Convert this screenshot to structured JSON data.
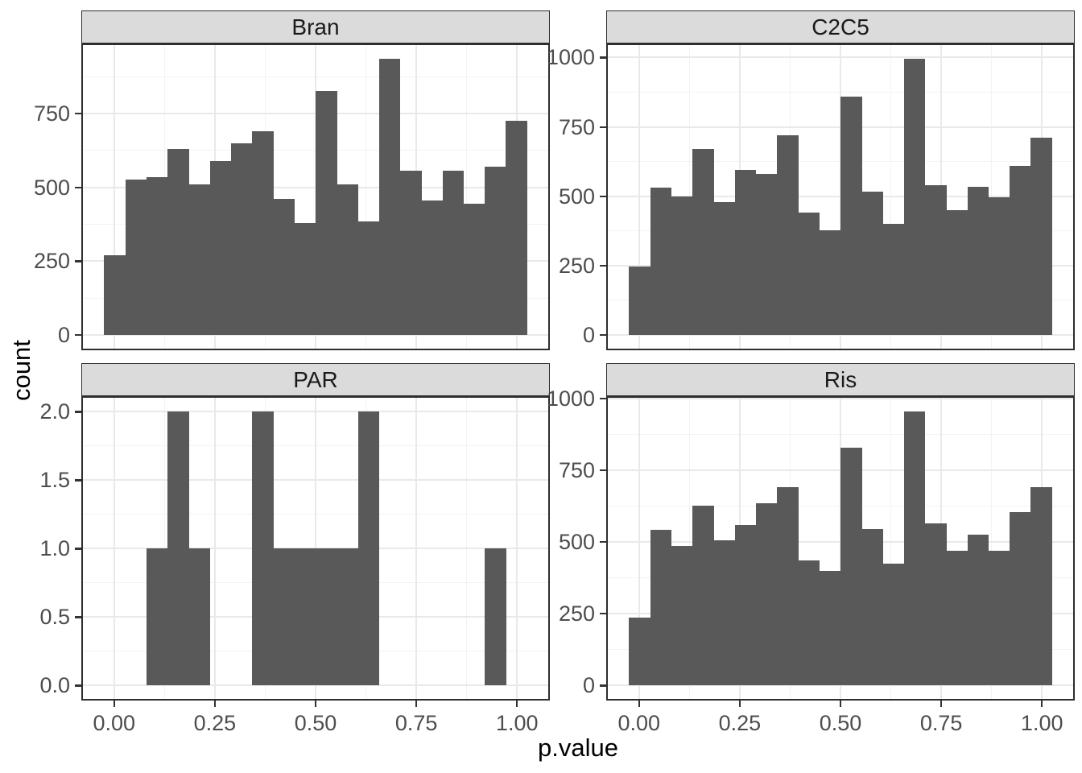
{
  "figure": {
    "x_axis_title": "p.value",
    "y_axis_title": "count"
  },
  "style": {
    "bar_fill": "#595959",
    "strip_fill": "#DBDBDB",
    "panel_border": "#2E2E2E",
    "grid_major": "#E9E9E9",
    "grid_minor": "#F3F3F3",
    "tick_mark_color": "#333333",
    "tick_label_color": "#4D4D4D",
    "background": "#FFFFFF"
  },
  "chart_data": {
    "type": "bar",
    "subtype": "faceted-histogram",
    "title": "",
    "xlabel": "p.value",
    "ylabel": "count",
    "grid": true,
    "legend": false,
    "x_range": [
      -0.0775,
      1.0775
    ],
    "bin_start": -0.025,
    "bin_width": 0.0525,
    "x_ticks": [
      0,
      0.25,
      0.5,
      0.75,
      1.0
    ],
    "x_tick_labels": [
      "0.00",
      "0.25",
      "0.50",
      "0.75",
      "1.00"
    ],
    "x_minor": [
      0.125,
      0.375,
      0.625,
      0.875
    ],
    "facets": [
      {
        "label": "Bran",
        "counts": [
          270,
          525,
          535,
          630,
          510,
          590,
          650,
          690,
          460,
          380,
          825,
          510,
          385,
          935,
          555,
          455,
          555,
          445,
          570,
          725
        ],
        "y_max": 935,
        "y_ticks": [
          0,
          250,
          500,
          750
        ],
        "y_tick_labels": [
          "0",
          "250",
          "500",
          "750"
        ],
        "y_minor": [
          125,
          375,
          625,
          875
        ]
      },
      {
        "label": "C2C5",
        "counts": [
          247,
          530,
          500,
          670,
          478,
          595,
          580,
          720,
          440,
          378,
          860,
          515,
          400,
          995,
          540,
          450,
          535,
          497,
          610,
          710
        ],
        "y_max": 995,
        "y_ticks": [
          0,
          250,
          500,
          750,
          1000
        ],
        "y_tick_labels": [
          "0",
          "250",
          "500",
          "750",
          "1000"
        ],
        "y_minor": [
          125,
          375,
          625,
          875
        ]
      },
      {
        "label": "PAR",
        "counts": [
          0,
          0,
          1,
          2,
          1,
          0,
          0,
          2,
          1,
          1,
          1,
          1,
          2,
          0,
          0,
          0,
          0,
          0,
          1,
          0
        ],
        "y_max": 2,
        "y_ticks": [
          0,
          0.5,
          1,
          1.5,
          2
        ],
        "y_tick_labels": [
          "0.0",
          "0.5",
          "1.0",
          "1.5",
          "2.0"
        ],
        "y_minor": [
          0.25,
          0.75,
          1.25,
          1.75
        ]
      },
      {
        "label": "Ris",
        "counts": [
          237,
          542,
          485,
          625,
          505,
          558,
          635,
          690,
          435,
          400,
          830,
          545,
          425,
          955,
          565,
          468,
          525,
          470,
          605,
          690
        ],
        "y_max": 955,
        "y_ticks": [
          0,
          250,
          500,
          750,
          1000
        ],
        "y_tick_labels": [
          "0",
          "250",
          "500",
          "750",
          "1000"
        ],
        "y_minor": [
          125,
          375,
          625,
          875
        ]
      }
    ]
  }
}
